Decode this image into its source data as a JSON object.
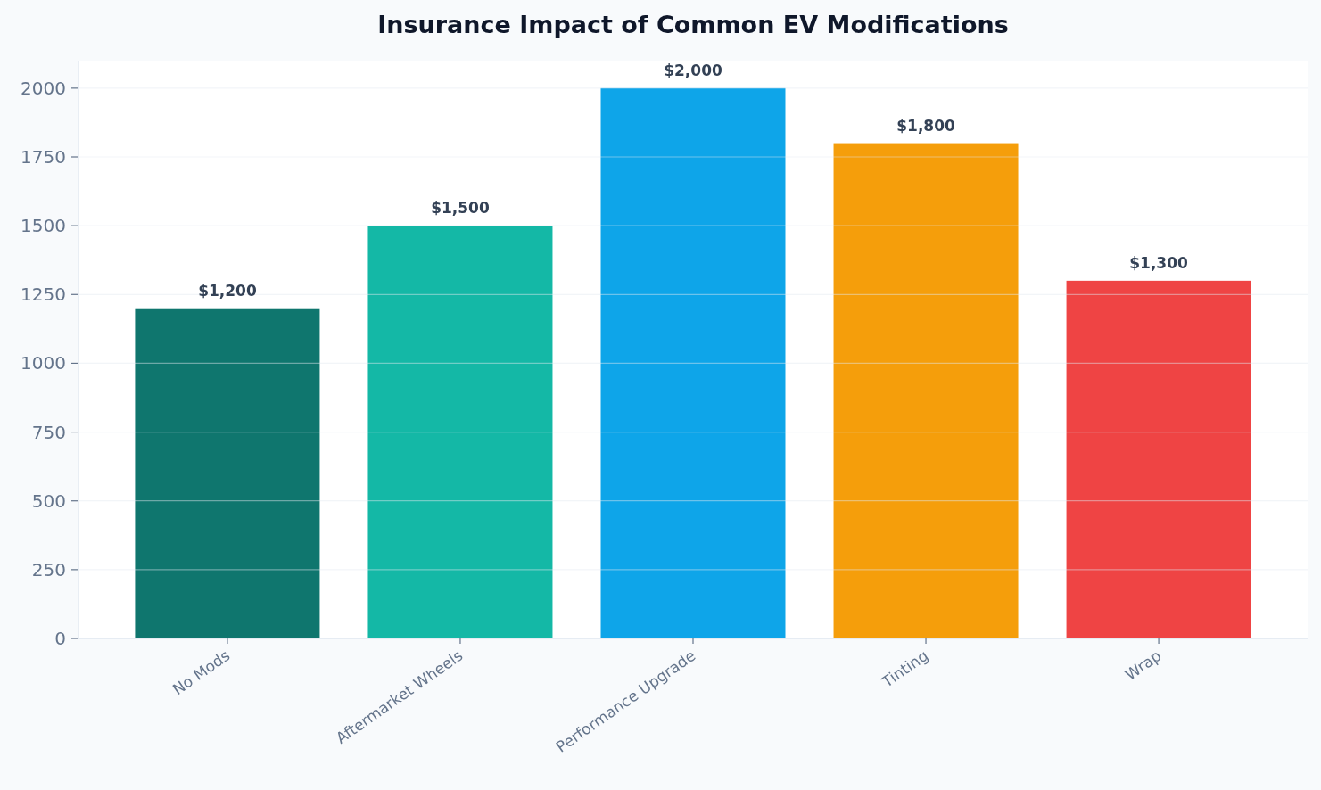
{
  "chart_data": {
    "type": "bar",
    "title": "Insurance Impact of Common EV Modifications",
    "categories": [
      "No Mods",
      "Aftermarket Wheels",
      "Performance Upgrade",
      "Tinting",
      "Wrap"
    ],
    "values": [
      1200,
      1500,
      2000,
      1800,
      1300
    ],
    "colors": [
      "#0f766e",
      "#14b8a6",
      "#0ea5e9",
      "#f59e0b",
      "#ef4444"
    ],
    "value_labels": [
      "$1,200",
      "$1,500",
      "$2,000",
      "$1,800",
      "$1,300"
    ],
    "ylim": [
      0,
      2100
    ],
    "yticks": [
      0,
      250,
      500,
      750,
      1000,
      1250,
      1500,
      1750,
      2000
    ],
    "grid": "y"
  }
}
